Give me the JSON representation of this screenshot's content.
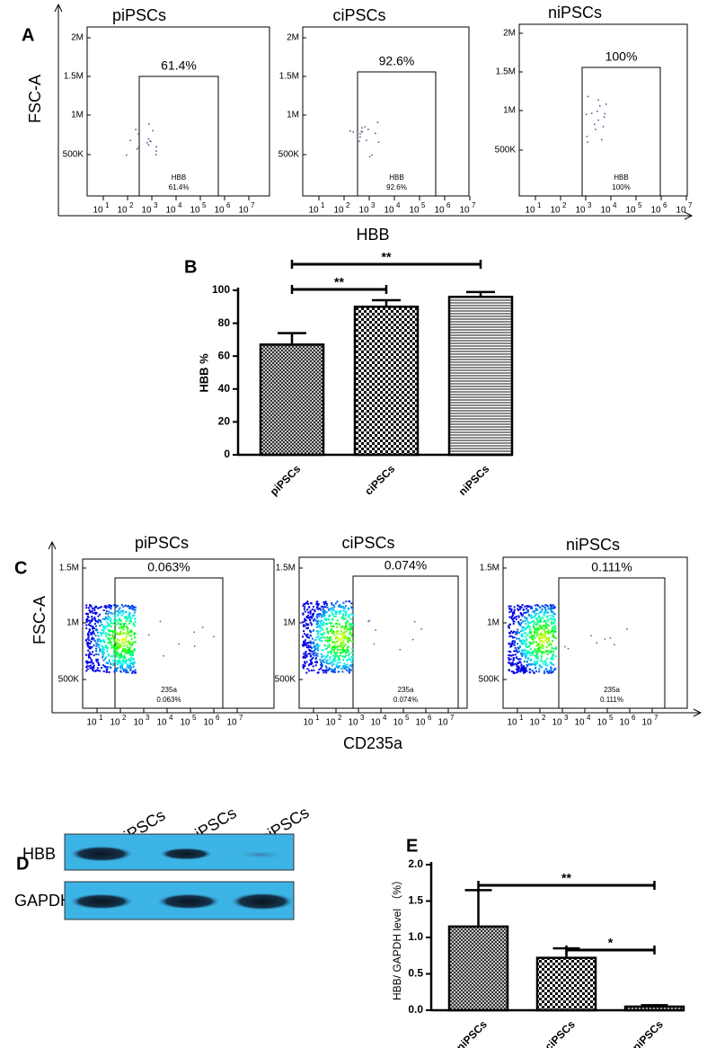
{
  "panel_a": {
    "label": "A",
    "y_axis_label": "FSC-A",
    "x_axis_label": "HBB",
    "x_tick_base": "10",
    "x_tick_exponents": [
      1,
      2,
      3,
      4,
      5,
      6,
      7
    ],
    "y_ticks": [
      "2M",
      "1.5M",
      "1M",
      "500K"
    ],
    "plots": [
      {
        "title": "piPSCs",
        "gate_name": "HBB",
        "gate_percent": "61.4%"
      },
      {
        "title": "ciPSCs",
        "gate_name": "HBB",
        "gate_percent": "92.6%"
      },
      {
        "title": "niPSCs",
        "gate_name": "HBB",
        "gate_percent": "100%"
      }
    ]
  },
  "panel_c": {
    "label": "C",
    "y_axis_label": "FSC-A",
    "x_axis_label": "CD235a",
    "x_tick_base": "10",
    "x_tick_exponents": [
      1,
      2,
      3,
      4,
      5,
      6,
      7
    ],
    "y_ticks": [
      "1.5M",
      "1M",
      "500K"
    ],
    "plots": [
      {
        "title": "piPSCs",
        "gate_name": "235a",
        "gate_percent": "0.063%"
      },
      {
        "title": "ciPSCs",
        "gate_name": "235a",
        "gate_percent": "0.074%"
      },
      {
        "title": "niPSCs",
        "gate_name": "235a",
        "gate_percent": "0.111%"
      }
    ]
  },
  "panel_d": {
    "label": "D",
    "lanes": [
      "niPSCs",
      "ciPSCs",
      "piPSCs"
    ],
    "rows": [
      "HBB",
      "GAPDH"
    ]
  },
  "chart_data": [
    {
      "type": "bar",
      "panel_label": "B",
      "y_label": "HBB %",
      "categories": [
        "piPSCs",
        "ciPSCs",
        "niPSCs"
      ],
      "values": [
        67,
        90,
        96
      ],
      "errors": [
        7,
        4,
        3
      ],
      "patterns": [
        "crosshatch",
        "checker",
        "hlines"
      ],
      "ylim": [
        0,
        100
      ],
      "yticks": [
        0,
        20,
        40,
        60,
        80,
        100
      ],
      "annotations": [
        {
          "text": "**",
          "between": [
            "piPSCs",
            "ciPSCs"
          ]
        },
        {
          "text": "**",
          "between": [
            "piPSCs",
            "niPSCs"
          ]
        }
      ]
    },
    {
      "type": "bar",
      "panel_label": "E",
      "y_label": "HBB/ GAPDH level （%）",
      "categories": [
        "niPSCs",
        "ciPSCs",
        "piPSCs"
      ],
      "values": [
        1.15,
        0.72,
        0.05
      ],
      "errors": [
        0.5,
        0.13,
        0.02
      ],
      "patterns": [
        "crosshatch",
        "checker",
        "crosshatch"
      ],
      "ylim": [
        0,
        2
      ],
      "yticks": [
        {
          "value": 0,
          "label": "0.0"
        },
        {
          "value": 0.5,
          "label": "0.5"
        },
        {
          "value": 1,
          "label": "1.0"
        },
        {
          "value": 1.5,
          "label": "1.5"
        },
        {
          "value": 2,
          "label": "2.0"
        }
      ],
      "annotations": [
        {
          "text": "*",
          "between": [
            "ciPSCs",
            "piPSCs"
          ]
        },
        {
          "text": "**",
          "between": [
            "niPSCs",
            "piPSCs"
          ]
        }
      ]
    }
  ]
}
